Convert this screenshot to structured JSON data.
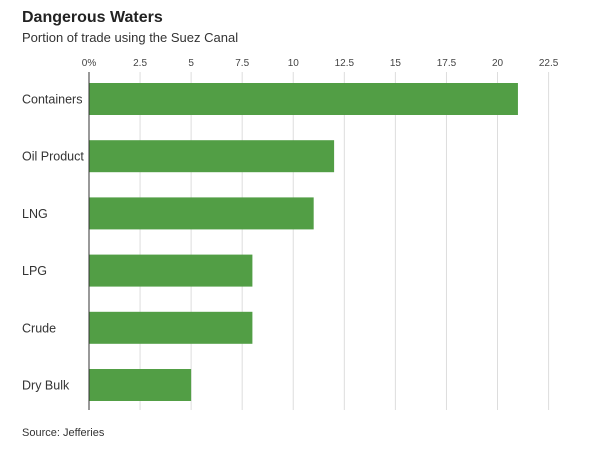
{
  "header": {
    "title": "Dangerous Waters",
    "subtitle": "Portion of trade using the Suez Canal"
  },
  "footer": {
    "source": "Source: Jefferies"
  },
  "chart_data": {
    "type": "bar",
    "orientation": "horizontal",
    "title": "Dangerous Waters",
    "subtitle": "Portion of trade using the Suez Canal",
    "xlabel": "",
    "ylabel": "",
    "categories": [
      "Containers",
      "Oil Product",
      "LNG",
      "LPG",
      "Crude",
      "Dry Bulk"
    ],
    "values": [
      21.0,
      12.0,
      11.0,
      8.0,
      8.0,
      5.0
    ],
    "xlim": [
      0,
      23.5
    ],
    "ticks": [
      0,
      2.5,
      5,
      7.5,
      10,
      12.5,
      15,
      17.5,
      20,
      22.5
    ],
    "tick_labels": [
      "0%",
      "2.5",
      "5",
      "7.5",
      "10",
      "12.5",
      "15",
      "17.5",
      "20",
      "22.5"
    ],
    "axis_position": "top",
    "grid": true,
    "bar_color": "#529e45",
    "grid_color": "#dddddd"
  }
}
